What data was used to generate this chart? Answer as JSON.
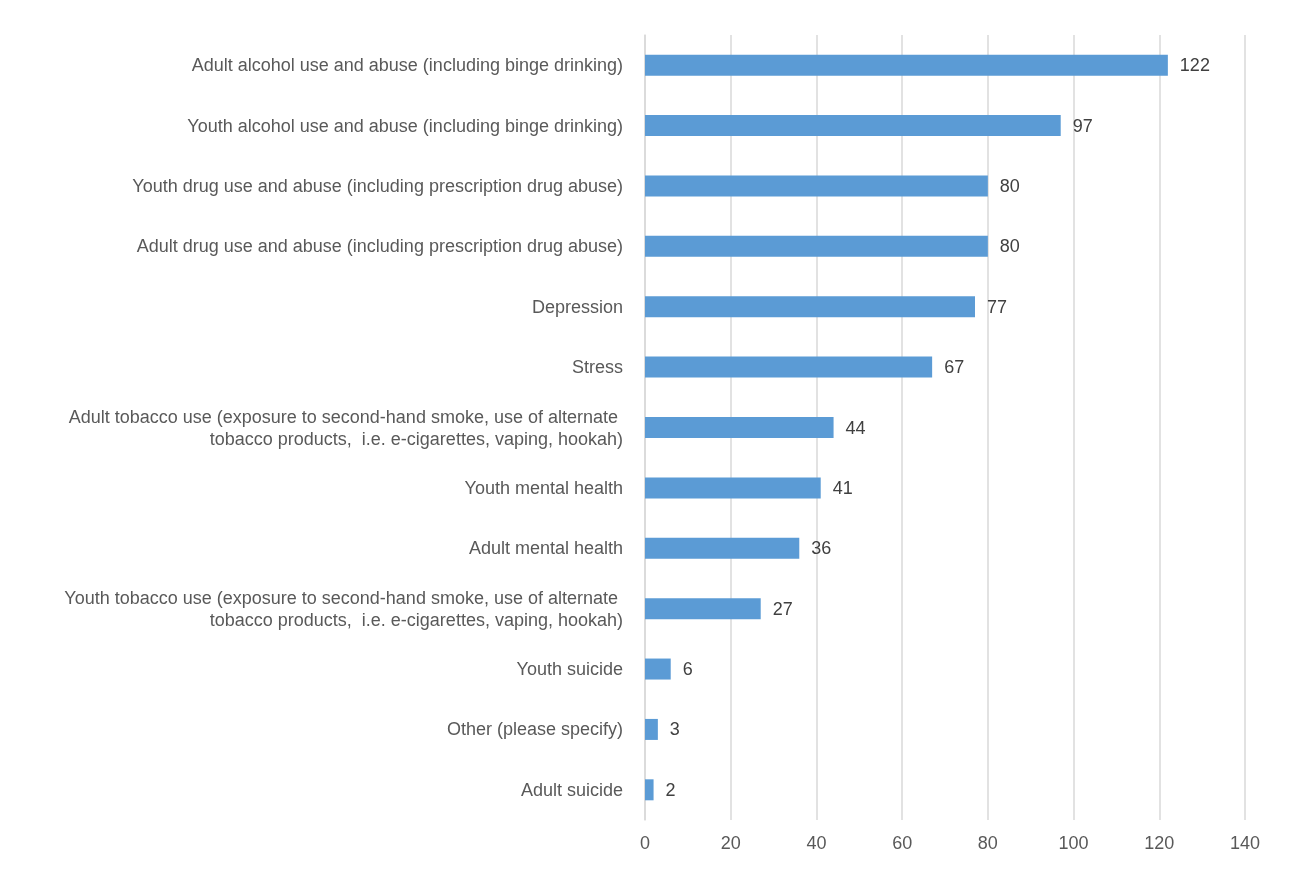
{
  "chart_data": {
    "type": "bar",
    "orientation": "horizontal",
    "categories": [
      "Adult alcohol use and abuse (including binge drinking)",
      "Youth alcohol use and abuse (including binge drinking)",
      "Youth drug use and abuse (including prescription drug abuse)",
      "Adult drug use and abuse (including prescription drug abuse)",
      "Depression",
      "Stress",
      "Adult tobacco use (exposure to second-hand smoke, use of alternate tobacco products,  i.e. e-cigarettes, vaping, hookah)",
      "Youth mental health",
      "Adult mental health",
      "Youth tobacco use (exposure to second-hand smoke, use of alternate tobacco products,  i.e. e-cigarettes, vaping, hookah)",
      "Youth suicide",
      "Other (please specify)",
      "Adult suicide"
    ],
    "values": [
      122,
      97,
      80,
      80,
      77,
      67,
      44,
      41,
      36,
      27,
      6,
      3,
      2
    ],
    "color": "#5b9bd5",
    "xlim": [
      0,
      140
    ],
    "xticks": [
      0,
      20,
      40,
      60,
      80,
      100,
      120,
      140
    ],
    "grid": "x",
    "data_labels": true
  }
}
